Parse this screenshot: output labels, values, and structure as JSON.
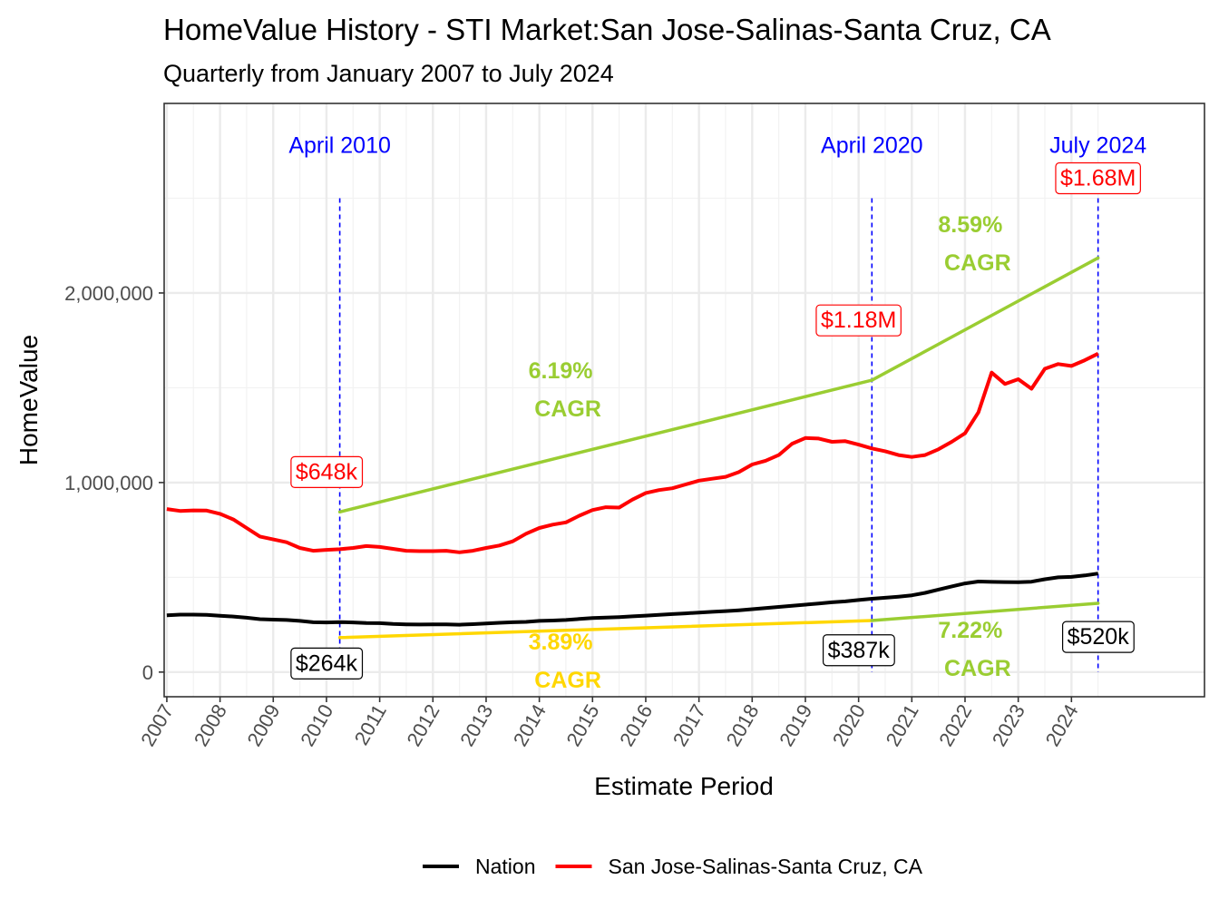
{
  "chart_data": {
    "type": "line",
    "title": "HomeValue History - STI Market:San Jose-Salinas-Santa Cruz, CA",
    "subtitle": "Quarterly from January 2007 to July 2024",
    "xlabel": "Estimate Period",
    "ylabel": "HomeValue",
    "xlim": [
      2006.95,
      2026.5
    ],
    "ylim": [
      -130000,
      3000000
    ],
    "x_ticks": [
      "2007",
      "2008",
      "2009",
      "2010",
      "2011",
      "2012",
      "2013",
      "2014",
      "2015",
      "2016",
      "2017",
      "2018",
      "2019",
      "2020",
      "2021",
      "2022",
      "2023",
      "2024"
    ],
    "y_ticks": [
      {
        "value": 0,
        "label": "0"
      },
      {
        "value": 1000000,
        "label": "1,000,000"
      },
      {
        "value": 2000000,
        "label": "2,000,000"
      }
    ],
    "grid": true,
    "legend_position": "bottom",
    "series": [
      {
        "name": "Nation",
        "color": "#000000",
        "points": [
          [
            2007.0,
            300000
          ],
          [
            2007.25,
            303000
          ],
          [
            2007.5,
            303000
          ],
          [
            2007.75,
            302000
          ],
          [
            2008.0,
            297000
          ],
          [
            2008.25,
            293000
          ],
          [
            2008.5,
            287000
          ],
          [
            2008.75,
            279000
          ],
          [
            2009.0,
            277000
          ],
          [
            2009.25,
            275000
          ],
          [
            2009.5,
            270000
          ],
          [
            2009.75,
            263000
          ],
          [
            2010.0,
            262000
          ],
          [
            2010.25,
            264000
          ],
          [
            2010.5,
            262000
          ],
          [
            2010.75,
            259000
          ],
          [
            2011.0,
            258000
          ],
          [
            2011.25,
            254000
          ],
          [
            2011.5,
            252000
          ],
          [
            2011.75,
            251000
          ],
          [
            2012.0,
            252000
          ],
          [
            2012.25,
            252000
          ],
          [
            2012.5,
            250000
          ],
          [
            2012.75,
            253000
          ],
          [
            2013.0,
            256000
          ],
          [
            2013.25,
            260000
          ],
          [
            2013.5,
            263000
          ],
          [
            2013.75,
            265000
          ],
          [
            2014.0,
            270000
          ],
          [
            2014.25,
            272000
          ],
          [
            2014.5,
            275000
          ],
          [
            2014.75,
            280000
          ],
          [
            2015.0,
            285000
          ],
          [
            2015.25,
            288000
          ],
          [
            2015.5,
            290000
          ],
          [
            2015.75,
            294000
          ],
          [
            2016.0,
            298000
          ],
          [
            2016.25,
            302000
          ],
          [
            2016.5,
            306000
          ],
          [
            2016.75,
            310000
          ],
          [
            2017.0,
            314000
          ],
          [
            2017.25,
            318000
          ],
          [
            2017.5,
            322000
          ],
          [
            2017.75,
            326000
          ],
          [
            2018.0,
            332000
          ],
          [
            2018.25,
            338000
          ],
          [
            2018.5,
            344000
          ],
          [
            2018.75,
            350000
          ],
          [
            2019.0,
            356000
          ],
          [
            2019.25,
            362000
          ],
          [
            2019.5,
            368000
          ],
          [
            2019.75,
            373000
          ],
          [
            2020.0,
            380000
          ],
          [
            2020.25,
            387000
          ],
          [
            2020.5,
            392000
          ],
          [
            2020.75,
            398000
          ],
          [
            2021.0,
            405000
          ],
          [
            2021.25,
            418000
          ],
          [
            2021.5,
            435000
          ],
          [
            2021.75,
            452000
          ],
          [
            2022.0,
            468000
          ],
          [
            2022.25,
            478000
          ],
          [
            2022.5,
            476000
          ],
          [
            2022.75,
            475000
          ],
          [
            2023.0,
            474000
          ],
          [
            2023.25,
            477000
          ],
          [
            2023.5,
            490000
          ],
          [
            2023.75,
            500000
          ],
          [
            2024.0,
            502000
          ],
          [
            2024.25,
            510000
          ],
          [
            2024.5,
            520000
          ]
        ]
      },
      {
        "name": "San Jose-Salinas-Santa Cruz, CA",
        "color": "#ff0000",
        "points": [
          [
            2007.0,
            860000
          ],
          [
            2007.25,
            850000
          ],
          [
            2007.5,
            853000
          ],
          [
            2007.75,
            852000
          ],
          [
            2008.0,
            835000
          ],
          [
            2008.25,
            805000
          ],
          [
            2008.5,
            760000
          ],
          [
            2008.75,
            715000
          ],
          [
            2009.0,
            700000
          ],
          [
            2009.25,
            685000
          ],
          [
            2009.5,
            655000
          ],
          [
            2009.75,
            640000
          ],
          [
            2010.0,
            645000
          ],
          [
            2010.25,
            648000
          ],
          [
            2010.5,
            655000
          ],
          [
            2010.75,
            665000
          ],
          [
            2011.0,
            660000
          ],
          [
            2011.25,
            650000
          ],
          [
            2011.5,
            640000
          ],
          [
            2011.75,
            638000
          ],
          [
            2012.0,
            638000
          ],
          [
            2012.25,
            640000
          ],
          [
            2012.5,
            632000
          ],
          [
            2012.75,
            640000
          ],
          [
            2013.0,
            655000
          ],
          [
            2013.25,
            668000
          ],
          [
            2013.5,
            690000
          ],
          [
            2013.75,
            730000
          ],
          [
            2014.0,
            760000
          ],
          [
            2014.25,
            778000
          ],
          [
            2014.5,
            790000
          ],
          [
            2014.75,
            825000
          ],
          [
            2015.0,
            855000
          ],
          [
            2015.25,
            870000
          ],
          [
            2015.5,
            868000
          ],
          [
            2015.75,
            910000
          ],
          [
            2016.0,
            945000
          ],
          [
            2016.25,
            960000
          ],
          [
            2016.5,
            970000
          ],
          [
            2016.75,
            990000
          ],
          [
            2017.0,
            1010000
          ],
          [
            2017.25,
            1020000
          ],
          [
            2017.5,
            1030000
          ],
          [
            2017.75,
            1055000
          ],
          [
            2018.0,
            1095000
          ],
          [
            2018.25,
            1115000
          ],
          [
            2018.5,
            1145000
          ],
          [
            2018.75,
            1205000
          ],
          [
            2019.0,
            1235000
          ],
          [
            2019.25,
            1232000
          ],
          [
            2019.5,
            1215000
          ],
          [
            2019.75,
            1218000
          ],
          [
            2020.0,
            1200000
          ],
          [
            2020.25,
            1180000
          ],
          [
            2020.5,
            1165000
          ],
          [
            2020.75,
            1145000
          ],
          [
            2021.0,
            1135000
          ],
          [
            2021.25,
            1145000
          ],
          [
            2021.5,
            1175000
          ],
          [
            2021.75,
            1215000
          ],
          [
            2022.0,
            1260000
          ],
          [
            2022.25,
            1370000
          ],
          [
            2022.5,
            1580000
          ],
          [
            2022.75,
            1520000
          ],
          [
            2023.0,
            1545000
          ],
          [
            2023.25,
            1495000
          ],
          [
            2023.5,
            1600000
          ],
          [
            2023.75,
            1625000
          ],
          [
            2024.0,
            1615000
          ],
          [
            2024.25,
            1645000
          ],
          [
            2024.5,
            1680000
          ]
        ]
      }
    ],
    "trend_segments": [
      {
        "x0": 2010.25,
        "y0": 845000,
        "x1": 2020.25,
        "y1": 1540000,
        "color": "#9acd32"
      },
      {
        "x0": 2020.25,
        "y0": 1540000,
        "x1": 2024.5,
        "y1": 2185000,
        "color": "#9acd32"
      },
      {
        "x0": 2010.25,
        "y0": 182000,
        "x1": 2020.25,
        "y1": 272000,
        "color": "#ffd700"
      },
      {
        "x0": 2020.25,
        "y0": 272000,
        "x1": 2024.5,
        "y1": 363000,
        "color": "#9acd32"
      }
    ],
    "vertical_lines": [
      {
        "x": 2010.25,
        "label": "April 2010",
        "label_y": 2740000
      },
      {
        "x": 2020.25,
        "label": "April 2020",
        "label_y": 2740000
      },
      {
        "x": 2024.5,
        "label": "July 2024",
        "label_y": 2740000
      }
    ],
    "cagr_annotations": [
      {
        "x": 2014.4,
        "y": 1550000,
        "pct": "6.19%",
        "word": "CAGR",
        "color": "#9acd32"
      },
      {
        "x": 2022.1,
        "y": 2320000,
        "pct": "8.59%",
        "word": "CAGR",
        "color": "#9acd32"
      },
      {
        "x": 2014.4,
        "y": 120000,
        "pct": "3.89%",
        "word": "CAGR",
        "color": "#ffd700"
      },
      {
        "x": 2022.1,
        "y": 180000,
        "pct": "7.22%",
        "word": "CAGR",
        "color": "#9acd32"
      }
    ],
    "value_labels": [
      {
        "x": 2010.0,
        "y": 1060000,
        "text": "$648k",
        "color": "#ff0000"
      },
      {
        "x": 2020.0,
        "y": 1860000,
        "text": "$1.18M",
        "color": "#ff0000"
      },
      {
        "x": 2024.5,
        "y": 2610000,
        "text": "$1.68M",
        "color": "#ff0000"
      },
      {
        "x": 2010.0,
        "y": 50000,
        "text": "$264k",
        "color": "#000000"
      },
      {
        "x": 2020.0,
        "y": 120000,
        "text": "$387k",
        "color": "#000000"
      },
      {
        "x": 2024.5,
        "y": 190000,
        "text": "$520k",
        "color": "#000000"
      }
    ]
  }
}
